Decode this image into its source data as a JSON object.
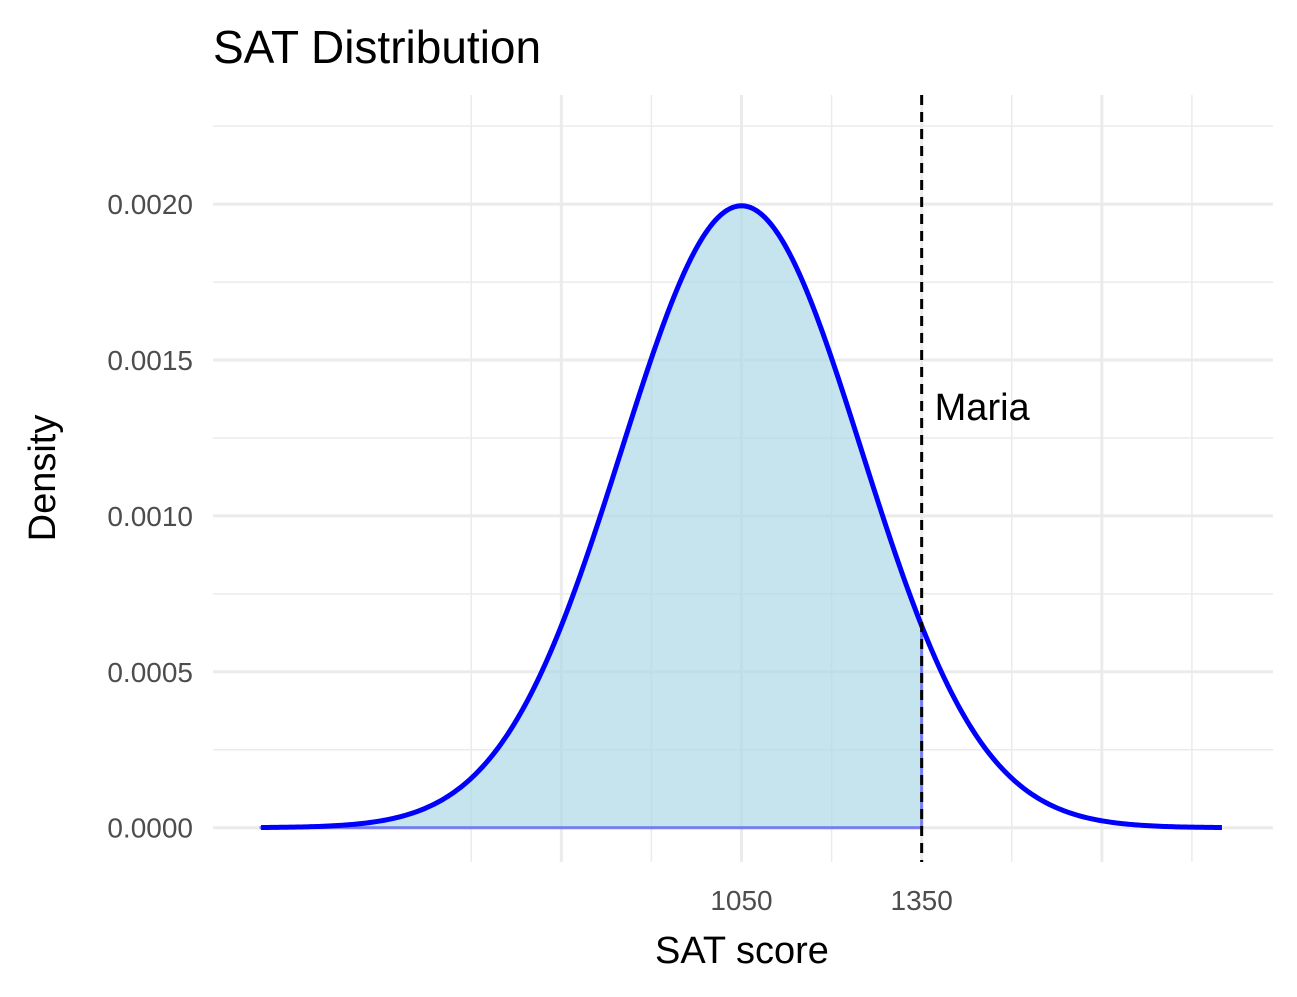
{
  "chart_data": {
    "type": "area",
    "title": "SAT Distribution",
    "xlabel": "SAT score",
    "ylabel": "Density",
    "distribution": {
      "mean": 1050,
      "sd": 200
    },
    "x_range_curve": [
      250,
      1850
    ],
    "xlim": [
      170,
      1935
    ],
    "ylim": [
      -0.00011,
      0.00235
    ],
    "x_ticks": [
      1050,
      1350
    ],
    "x_tick_labels": [
      "1050",
      "1350"
    ],
    "x_grid_major": [
      750,
      1050,
      1350,
      1650
    ],
    "x_grid_minor": [
      600,
      900,
      1200,
      1500,
      1800
    ],
    "y_ticks": [
      0,
      0.0005,
      0.001,
      0.0015,
      0.002
    ],
    "y_tick_labels": [
      "0.0000",
      "0.0005",
      "0.0010",
      "0.0015",
      "0.0020"
    ],
    "y_grid_minor": [
      0.00025,
      0.00075,
      0.00125,
      0.00175,
      0.00225
    ],
    "shaded_below": 1350,
    "reference_line": {
      "x": 1350,
      "style": "dashed",
      "color": "#000000"
    },
    "annotation": {
      "text": "Maria",
      "x": 1350,
      "y": 0.00135
    },
    "grid": true,
    "colors": {
      "curve": "#0000ff",
      "fill": "#add8e6",
      "grid": "#ebebeb"
    }
  }
}
